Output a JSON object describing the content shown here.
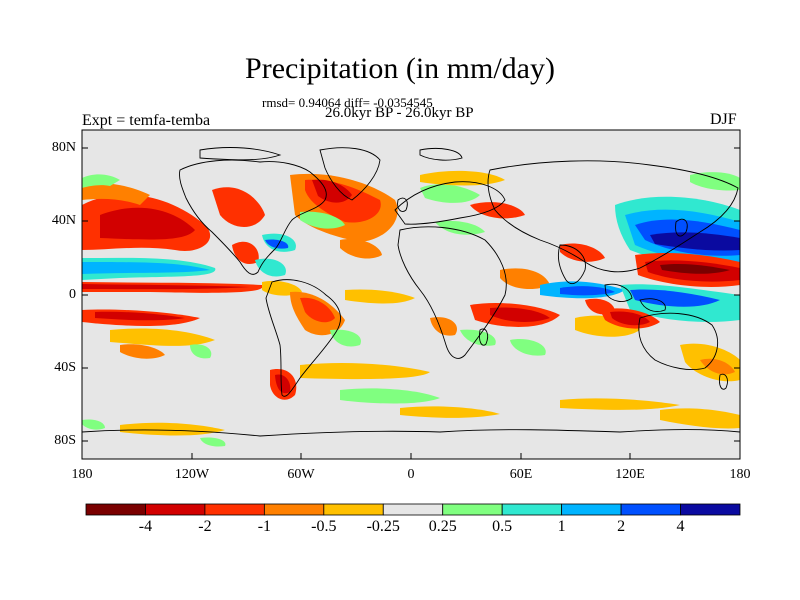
{
  "title": "Precipitation (in mm/day)",
  "stats_line": "rmsd= 0.94064 diff= -0.0354545",
  "period_line": "26.0kyr BP - 26.0kyr BP",
  "experiment_label": "Expt = temfa-temba",
  "season_label": "DJF",
  "lat_ticks": [
    "80N",
    "40N",
    "0",
    "40S",
    "80S"
  ],
  "lon_ticks": [
    "180",
    "120W",
    "60W",
    "0",
    "60E",
    "120E",
    "180"
  ],
  "colorbar": {
    "colors": [
      "#7a0000",
      "#d20000",
      "#ff3000",
      "#ff8000",
      "#ffc000",
      "#e6e6e6",
      "#80ff80",
      "#30e8d0",
      "#00b4ff",
      "#0050ff",
      "#0a0aa0"
    ],
    "labels": [
      "-4",
      "-2",
      "-1",
      "-0.5",
      "-0.25",
      "0.25",
      "0.5",
      "1",
      "2",
      "4"
    ]
  },
  "background_color": "#e6e6e6"
}
